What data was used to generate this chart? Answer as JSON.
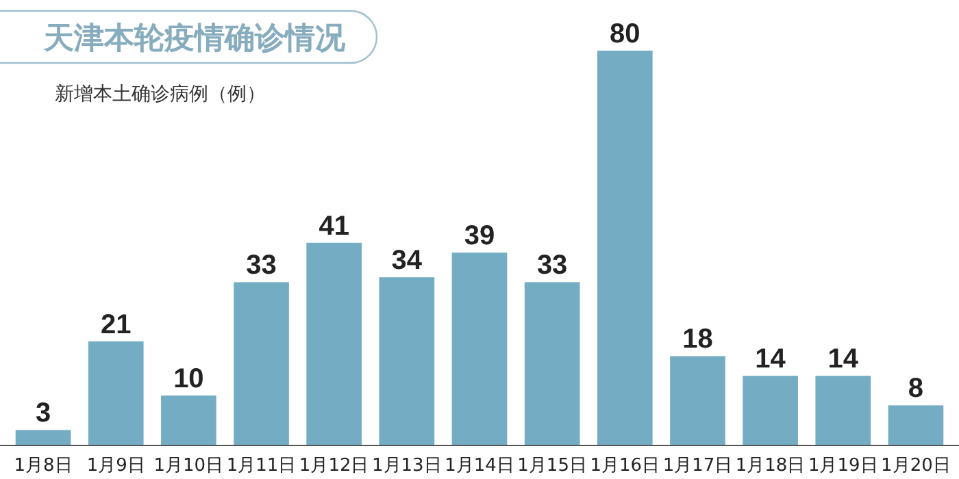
{
  "chart_data": {
    "type": "bar",
    "title": "天津本轮疫情确诊情况",
    "subtitle": "新增本土确诊病例（例）",
    "categories": [
      "1月8日",
      "1月9日",
      "1月10日",
      "1月11日",
      "1月12日",
      "1月13日",
      "1月14日",
      "1月15日",
      "1月16日",
      "1月17日",
      "1月18日",
      "1月19日",
      "1月20日"
    ],
    "values": [
      3,
      21,
      10,
      33,
      41,
      34,
      39,
      33,
      80,
      18,
      14,
      14,
      8
    ],
    "color": "#74adc3",
    "data_labels": true
  }
}
